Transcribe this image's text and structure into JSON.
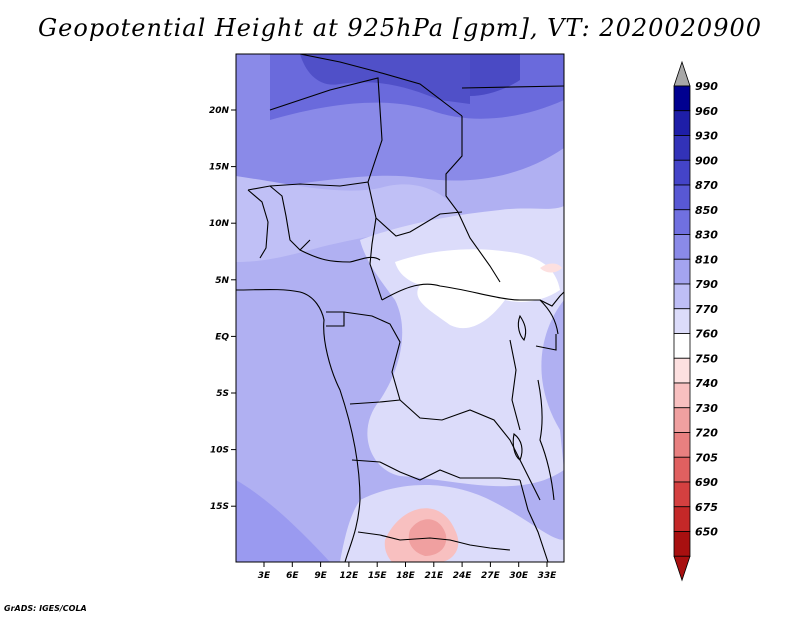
{
  "title": "Geopotential Height at 925hPa [gpm], VT: 2020020900",
  "credit": "GrADS: IGES/COLA",
  "map": {
    "lon_labels": [
      "3E",
      "6E",
      "9E",
      "12E",
      "15E",
      "18E",
      "21E",
      "24E",
      "27E",
      "30E",
      "33E"
    ],
    "lat_labels": [
      "20N",
      "15N",
      "10N",
      "5N",
      "EQ",
      "5S",
      "10S",
      "15S"
    ]
  },
  "colorbar": {
    "labels": [
      "990",
      "960",
      "930",
      "900",
      "870",
      "850",
      "830",
      "810",
      "790",
      "770",
      "760",
      "750",
      "740",
      "730",
      "720",
      "705",
      "690",
      "675",
      "650"
    ],
    "colors": [
      "#000090",
      "#1e1ea8",
      "#3232b8",
      "#4444c8",
      "#5858d4",
      "#7070e0",
      "#8a8ae8",
      "#a4a4f0",
      "#bebef6",
      "#dcdcfa",
      "#ffffff",
      "#fde0e0",
      "#f8c0c0",
      "#f0a0a0",
      "#e88080",
      "#e06060",
      "#d44040",
      "#c42828",
      "#a81010"
    ]
  }
}
